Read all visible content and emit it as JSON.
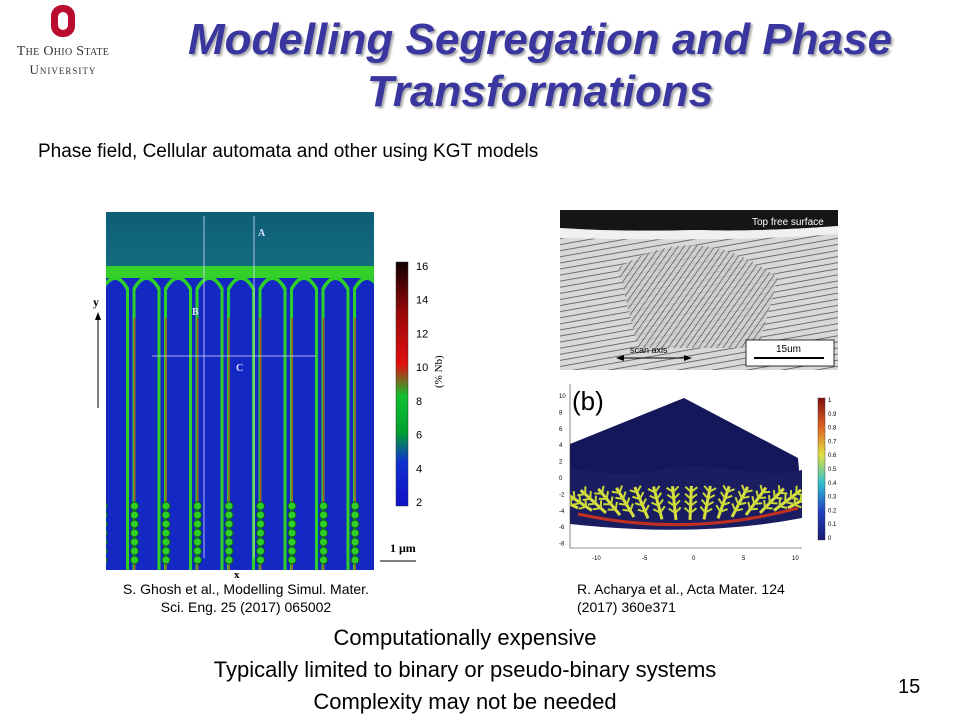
{
  "logo": {
    "line1": "The Ohio State",
    "line2": "University",
    "brand_color": "#ba0c2f"
  },
  "slide": {
    "title_line1": "Modelling Segregation and Phase",
    "title_line2": "Transformations",
    "subtitle": "Phase field, Cellular automata and other using KGT models",
    "title_color": "#3a36a0"
  },
  "figure_left": {
    "labels": {
      "A": "A",
      "B": "B",
      "C": "C",
      "x": "x",
      "y": "y",
      "scale": "1 μm"
    },
    "colorbar": {
      "ticks": [
        "16",
        "14",
        "12",
        "10",
        "8",
        "6",
        "4",
        "2"
      ],
      "label": "(% Nb)"
    },
    "caption_line1": "S. Ghosh et al., Modelling Simul. Mater.",
    "caption_line2": "Sci. Eng. 25 (2017) 065002"
  },
  "figure_right": {
    "top_label": "Top free surface",
    "scan_axis": "scan axis",
    "scale": "15um",
    "panel_label": "(b)",
    "y_ticks": [
      "10",
      "8",
      "6",
      "4",
      "2",
      "0",
      "-2",
      "-4",
      "-6",
      "-8"
    ],
    "x_ticks": [
      "-10",
      "-5",
      "0",
      "5",
      "10"
    ],
    "colorbar_ticks": [
      "1",
      "0.9",
      "0.8",
      "0.7",
      "0.6",
      "0.5",
      "0.4",
      "0.3",
      "0.2",
      "0.1",
      "0"
    ],
    "caption_line1": "R. Acharya et al., Acta Mater. 124",
    "caption_line2": "(2017) 360e371"
  },
  "bottom": {
    "line1": "Computationally expensive",
    "line2": "Typically limited to binary or pseudo-binary systems",
    "line3": "Complexity may not be needed"
  },
  "page_number": "15"
}
